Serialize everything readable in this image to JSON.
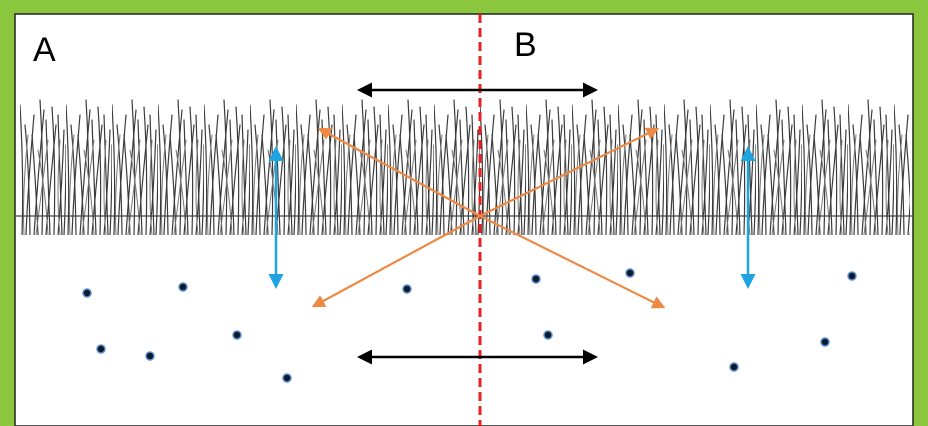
{
  "labels": {
    "left": "A",
    "right": "B"
  }
}
